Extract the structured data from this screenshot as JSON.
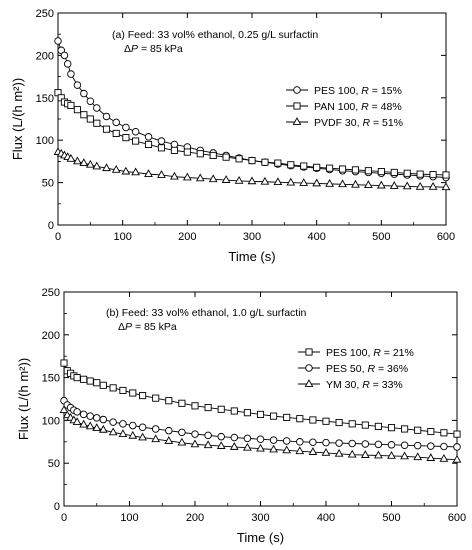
{
  "chart_data": [
    {
      "type": "scatter",
      "annotation_lines": [
        "(a) Feed: 33 vol% ethanol, 0.25 g/L surfactin",
        "ΔP = 85 kPa"
      ],
      "xlabel": "Time (s)",
      "ylabel": "Flux (L/(h m²))",
      "xlim": [
        0,
        600
      ],
      "ylim": [
        0,
        250
      ],
      "xticks": [
        0,
        100,
        200,
        300,
        400,
        500,
        600
      ],
      "yticks": [
        0,
        50,
        100,
        150,
        200,
        250
      ],
      "grid": false,
      "legend_position": "right",
      "series": [
        {
          "name": "PES 100, R = 15%",
          "marker": "circle",
          "x": [
            0,
            5,
            10,
            15,
            20,
            30,
            40,
            50,
            60,
            75,
            90,
            105,
            120,
            140,
            160,
            180,
            200,
            220,
            240,
            260,
            280,
            300,
            320,
            340,
            360,
            380,
            400,
            420,
            440,
            460,
            480,
            500,
            520,
            540,
            560,
            580,
            600
          ],
          "y": [
            217,
            206,
            200,
            190,
            178,
            165,
            155,
            146,
            138,
            128,
            121,
            115,
            110,
            104,
            99,
            95,
            92,
            88,
            85,
            82,
            79,
            76,
            74,
            72,
            70,
            68.5,
            67,
            65.5,
            64,
            63,
            62,
            61,
            60,
            59,
            58,
            57,
            56
          ]
        },
        {
          "name": "PAN 100, R = 48%",
          "marker": "square",
          "x": [
            0,
            5,
            10,
            15,
            20,
            30,
            40,
            50,
            60,
            75,
            90,
            105,
            120,
            140,
            160,
            180,
            200,
            220,
            240,
            260,
            280,
            300,
            320,
            340,
            360,
            380,
            400,
            420,
            440,
            460,
            480,
            500,
            520,
            540,
            560,
            580,
            600
          ],
          "y": [
            156,
            150,
            145,
            143,
            141,
            136,
            130,
            125,
            120,
            113,
            108,
            103,
            99,
            95,
            91,
            88,
            86,
            84,
            82,
            80,
            78,
            76,
            74,
            73,
            71,
            69.5,
            68,
            67,
            66,
            65,
            64,
            63,
            62,
            61,
            60,
            59.5,
            59
          ]
        },
        {
          "name": "PVDF 30, R = 51%",
          "marker": "triangle",
          "x": [
            0,
            5,
            10,
            15,
            20,
            30,
            40,
            50,
            60,
            75,
            90,
            105,
            120,
            140,
            160,
            180,
            200,
            220,
            240,
            260,
            280,
            300,
            320,
            340,
            360,
            380,
            400,
            420,
            440,
            460,
            480,
            500,
            520,
            540,
            560,
            580,
            600
          ],
          "y": [
            86,
            84,
            82,
            80,
            78,
            75,
            73,
            71,
            69,
            67,
            65,
            63,
            62,
            60,
            59,
            57,
            56,
            55,
            54,
            53,
            52,
            51.5,
            51,
            50.5,
            50,
            49.5,
            49,
            48.5,
            48,
            47.5,
            47,
            46.5,
            46,
            45.5,
            45,
            45,
            44.5
          ]
        }
      ]
    },
    {
      "type": "scatter",
      "annotation_lines": [
        "(b) Feed: 33 vol% ethanol, 1.0 g/L surfactin",
        "ΔP = 85 kPa"
      ],
      "xlabel": "Time (s)",
      "ylabel": "Flux (L/(h m²))",
      "xlim": [
        0,
        600
      ],
      "ylim": [
        0,
        250
      ],
      "xticks": [
        0,
        100,
        200,
        300,
        400,
        500,
        600
      ],
      "yticks": [
        0,
        50,
        100,
        150,
        200,
        250
      ],
      "grid": false,
      "legend_position": "right",
      "series": [
        {
          "name": "PES 100, R = 21%",
          "marker": "square",
          "x": [
            0,
            5,
            10,
            15,
            20,
            30,
            40,
            50,
            60,
            75,
            90,
            105,
            120,
            140,
            160,
            180,
            200,
            220,
            240,
            260,
            280,
            300,
            320,
            340,
            360,
            380,
            400,
            420,
            440,
            460,
            480,
            500,
            520,
            540,
            560,
            580,
            600
          ],
          "y": [
            167,
            158,
            155,
            152,
            150,
            148,
            146,
            144,
            141,
            138,
            135,
            132,
            129,
            126,
            123,
            120,
            117,
            115,
            113,
            111,
            109,
            107,
            105,
            103.5,
            102,
            100.5,
            99,
            97.5,
            96,
            94.5,
            93,
            91.5,
            90,
            88.5,
            87,
            85.5,
            84
          ]
        },
        {
          "name": "PES 50, R = 36%",
          "marker": "circle",
          "x": [
            0,
            5,
            10,
            15,
            20,
            30,
            40,
            50,
            60,
            75,
            90,
            105,
            120,
            140,
            160,
            180,
            200,
            220,
            240,
            260,
            280,
            300,
            320,
            340,
            360,
            380,
            400,
            420,
            440,
            460,
            480,
            500,
            520,
            540,
            560,
            580,
            600
          ],
          "y": [
            123,
            118,
            115,
            112,
            110,
            107,
            105,
            103,
            101,
            98,
            96,
            94,
            92,
            90,
            88,
            86,
            84,
            82.5,
            81,
            80,
            79,
            78,
            77,
            76,
            75,
            74.5,
            74,
            73.5,
            73,
            72.5,
            72,
            71.5,
            71,
            70.5,
            70,
            69.5,
            69
          ]
        },
        {
          "name": "YM 30, R = 33%",
          "marker": "triangle",
          "x": [
            0,
            5,
            10,
            15,
            20,
            30,
            40,
            50,
            60,
            75,
            90,
            105,
            120,
            140,
            160,
            180,
            200,
            220,
            240,
            260,
            280,
            300,
            320,
            340,
            360,
            380,
            400,
            420,
            440,
            460,
            480,
            500,
            520,
            540,
            560,
            580,
            600
          ],
          "y": [
            112,
            106,
            103,
            100,
            98,
            95,
            93,
            91,
            89,
            86,
            84,
            82,
            80,
            78,
            76,
            74,
            72,
            71,
            70,
            69,
            68,
            67,
            66,
            65,
            64,
            63,
            62,
            61,
            60,
            59.5,
            59,
            58.5,
            58,
            57,
            56,
            55,
            54
          ]
        }
      ]
    }
  ]
}
